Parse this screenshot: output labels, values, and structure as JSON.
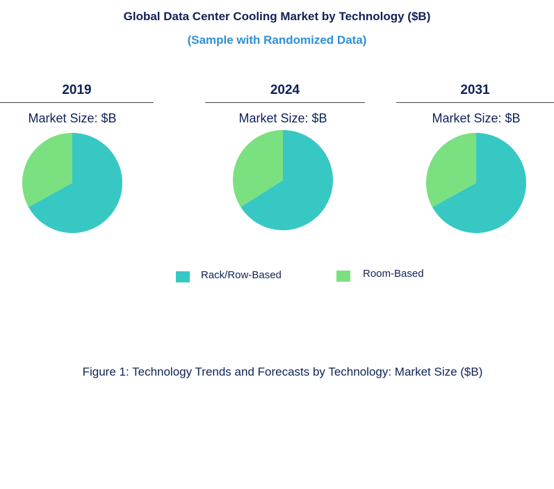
{
  "chart_data": {
    "type": "pie",
    "title": "Global Data Center Cooling Market by Technology ($B)",
    "subtitle": "(Sample with Randomized Data)",
    "caption": "Figure 1: Technology Trends and Forecasts by Technology: Market Size ($B)",
    "series_names": [
      "Rack/Row-Based",
      "Room-Based"
    ],
    "colors": {
      "Rack/Row-Based": "#38c8c4",
      "Room-Based": "#7be07f"
    },
    "legend_placement": "bottom",
    "pies": [
      {
        "year": "2019",
        "label": "Market Size: $B",
        "values": [
          67,
          33
        ]
      },
      {
        "year": "2024",
        "label": "Market Size: $B",
        "values": [
          66,
          34
        ]
      },
      {
        "year": "2031",
        "label": "Market Size: $B",
        "values": [
          67,
          33
        ]
      }
    ]
  }
}
